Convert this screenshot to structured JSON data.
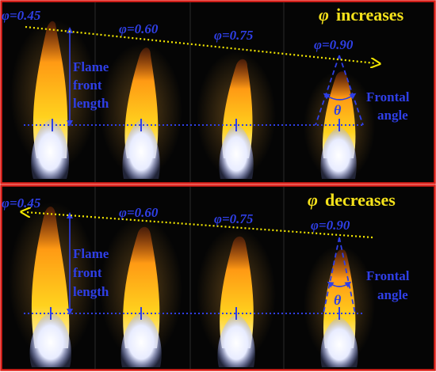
{
  "colors": {
    "frame_border": "#e0201a",
    "background": "#050505",
    "annotation_blue": "#2f3fe6",
    "guide_yellow": "#f2e600",
    "heading_yellow": "#f5e21b",
    "flame_core": "#f4f6ff",
    "flame_orange": "#ff9a14",
    "flame_yellow": "#ffd21e"
  },
  "panels": [
    {
      "id": "increase",
      "heading_symbol": "φ",
      "heading_text": "increases",
      "guide_direction": "right",
      "flames": [
        {
          "label": "φ=0.45"
        },
        {
          "label": "φ=0.60"
        },
        {
          "label": "φ=0.75"
        },
        {
          "label": "φ=0.90"
        }
      ],
      "length_label": [
        "Flame",
        "front",
        "length"
      ],
      "angle_label": [
        "Frontal",
        "angle"
      ],
      "angle_symbol": "θ"
    },
    {
      "id": "decrease",
      "heading_symbol": "φ",
      "heading_text": "decreases",
      "guide_direction": "left",
      "flames": [
        {
          "label": "φ=0.45"
        },
        {
          "label": "φ=0.60"
        },
        {
          "label": "φ=0.75"
        },
        {
          "label": "φ=0.90"
        }
      ],
      "length_label": [
        "Flame",
        "front",
        "length"
      ],
      "angle_label": [
        "Frontal",
        "angle"
      ],
      "angle_symbol": "θ"
    }
  ]
}
